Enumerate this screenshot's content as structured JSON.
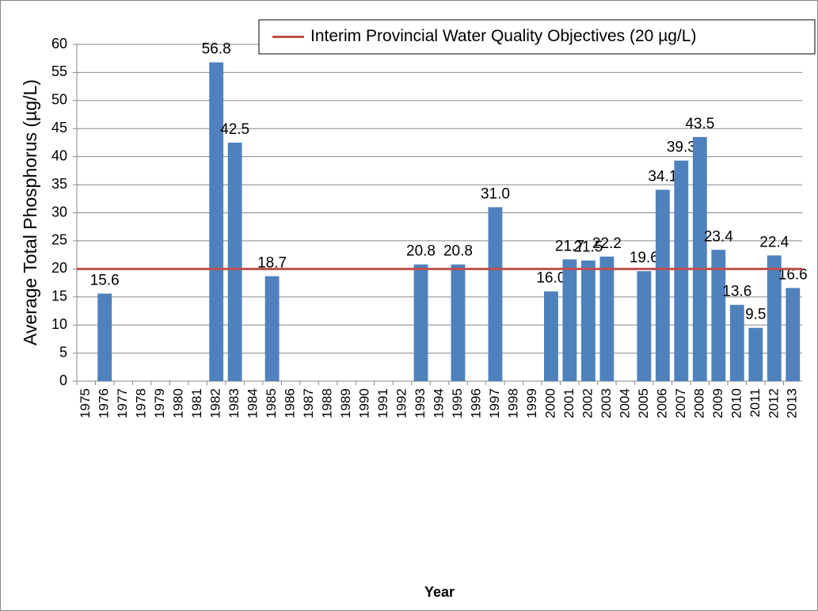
{
  "chart_data": {
    "type": "bar",
    "x_label": "Year",
    "y_label": "Average Total Phosphorus (µg/L)",
    "categories": [
      "1975",
      "1976",
      "1977",
      "1978",
      "1979",
      "1980",
      "1981",
      "1982",
      "1983",
      "1984",
      "1985",
      "1986",
      "1987",
      "1988",
      "1989",
      "1990",
      "1991",
      "1992",
      "1993",
      "1994",
      "1995",
      "1996",
      "1997",
      "1998",
      "1999",
      "2000",
      "2001",
      "2002",
      "2003",
      "2004",
      "2005",
      "2006",
      "2007",
      "2008",
      "2009",
      "2010",
      "2011",
      "2012",
      "2013"
    ],
    "values": [
      null,
      15.6,
      null,
      null,
      null,
      null,
      null,
      56.8,
      42.5,
      null,
      18.7,
      null,
      null,
      null,
      null,
      null,
      null,
      null,
      20.8,
      null,
      20.8,
      null,
      31.0,
      null,
      null,
      16.0,
      21.7,
      21.5,
      22.2,
      null,
      19.6,
      34.1,
      39.3,
      43.5,
      23.4,
      13.6,
      9.5,
      22.4,
      16.6
    ],
    "value_labels": [
      null,
      "15.6",
      null,
      null,
      null,
      null,
      null,
      "56.8",
      "42.5",
      null,
      "18.7",
      null,
      null,
      null,
      null,
      null,
      null,
      null,
      "20.8",
      null,
      "20.8",
      null,
      "31.0",
      null,
      null,
      "16.0",
      "21.7",
      "21.5",
      "22.2",
      null,
      "19.6",
      "34.1",
      "39.3",
      "43.5",
      "23.4",
      "13.6",
      "9.5",
      "22.4",
      "16.6"
    ],
    "color": "#4f81bd",
    "reference_line": {
      "name": "Interim Provincial Water Quality Objectives (20 µg/L)",
      "value": 20,
      "color": "#c0504d"
    },
    "ylim": [
      0,
      60
    ],
    "yticks": [
      0,
      5,
      10,
      15,
      20,
      25,
      30,
      35,
      40,
      45,
      50,
      55,
      60
    ],
    "grid": true,
    "legend_position": "top-right"
  }
}
